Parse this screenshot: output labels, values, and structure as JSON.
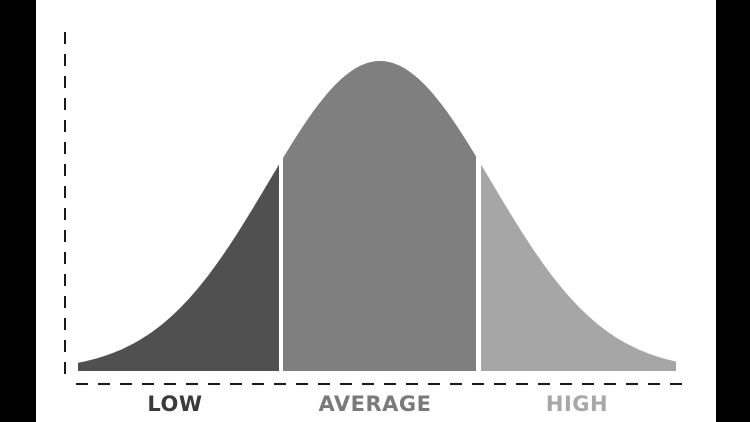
{
  "labels": {
    "low": "LOW",
    "average": "AVERAGE",
    "high": "HIGH"
  },
  "colors": {
    "background": "#ffffff",
    "letterbox": "#000000",
    "low_region": "#505050",
    "average_region": "#7f7f7f",
    "high_region": "#a6a6a6",
    "low_label": "#3a3a3a",
    "average_label": "#7a7a7a",
    "high_label": "#a8a8a8",
    "axis": "#1a1a1a"
  }
}
